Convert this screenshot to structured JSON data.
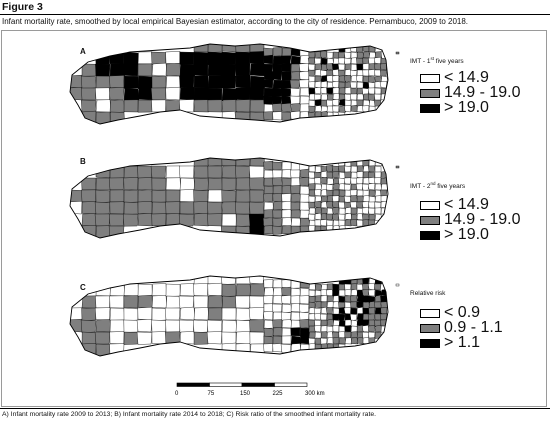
{
  "figure_label": "Figure 3",
  "title": "Infant mortality rate, smoothed by local empirical Bayesian estimator, according to the city of residence. Pernambuco, 2009 to 2018.",
  "colors": {
    "low": "#ffffff",
    "mid": "#7f7f7f",
    "high": "#000000",
    "border": "#000000"
  },
  "panels": [
    {
      "letter": "A",
      "legend_title": "IMT - 1st five years",
      "legend_title_main": "IMT - 1",
      "legend_title_sup": "st",
      "legend_title_rest": " five years",
      "legend": [
        {
          "label": "< 14.9",
          "color": "#ffffff"
        },
        {
          "label": "14.9 - 19.0",
          "color": "#7f7f7f"
        },
        {
          "label": "> 19.0",
          "color": "#000000"
        }
      ]
    },
    {
      "letter": "B",
      "legend_title": "IMT - 2nd five years",
      "legend_title_main": "IMT - 2",
      "legend_title_sup": "nd",
      "legend_title_rest": " five years",
      "legend": [
        {
          "label": "< 14.9",
          "color": "#ffffff"
        },
        {
          "label": "14.9 - 19.0",
          "color": "#7f7f7f"
        },
        {
          "label": "> 19.0",
          "color": "#000000"
        }
      ]
    },
    {
      "letter": "C",
      "legend_title": "Relative risk",
      "legend_title_main": "Relative risk",
      "legend_title_sup": "",
      "legend_title_rest": "",
      "legend": [
        {
          "label": "< 0.9",
          "color": "#ffffff"
        },
        {
          "label": "0.9 - 1.1",
          "color": "#7f7f7f"
        },
        {
          "label": "> 1.1",
          "color": "#000000"
        }
      ]
    }
  ],
  "scale_bar": {
    "ticks": [
      "0",
      "75",
      "150",
      "225",
      "300 km"
    ]
  },
  "caption": "A) Infant mortality rate 2009 to 2013; B) Infant mortality rate 2014 to 2018; C) Risk ratio of the smoothed infant mortality rate."
}
